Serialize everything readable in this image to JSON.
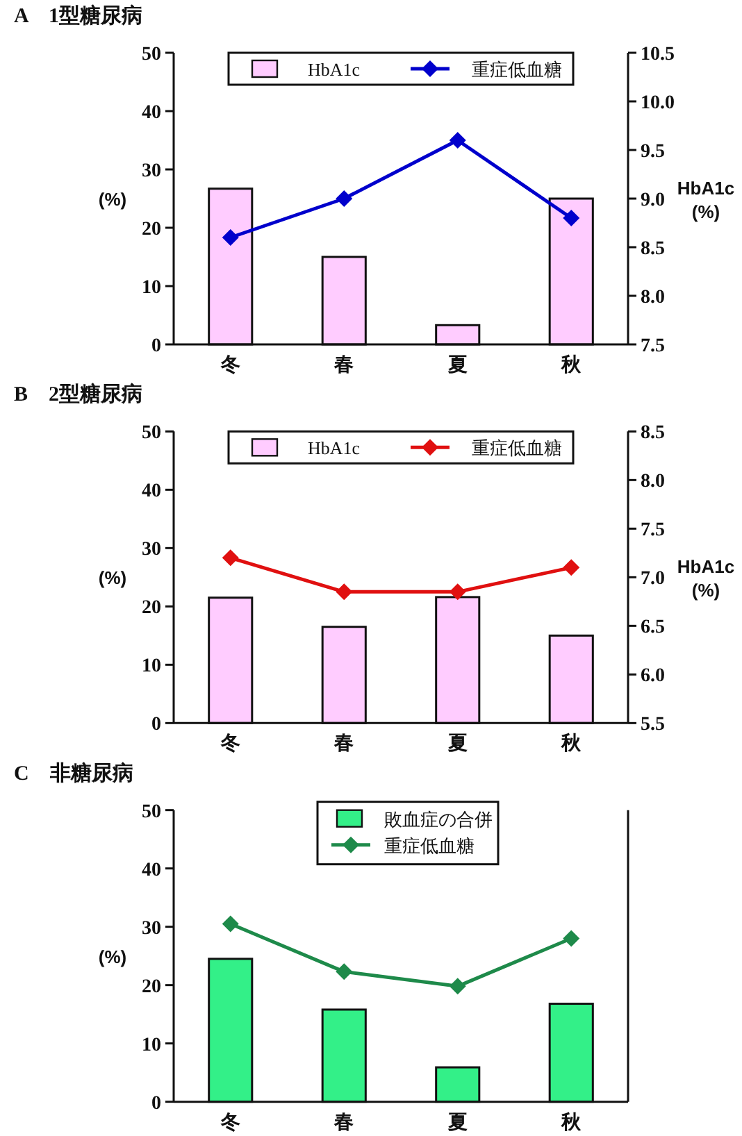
{
  "chart_data": [
    {
      "type": "bar",
      "title": "A　1型糖尿病",
      "ylabel": "(%)",
      "y2label": "HbA1c\n(%)",
      "categories": [
        "冬",
        "春",
        "夏",
        "秋"
      ],
      "ylim": [
        0,
        50
      ],
      "yticks": [
        0,
        10,
        20,
        30,
        40,
        50
      ],
      "y2lim": [
        7.5,
        10.5
      ],
      "y2ticks": [
        7.5,
        {
          "value": 8,
          "label": "8.0"
        },
        8.5,
        {
          "value": 9,
          "label": "9.0"
        },
        9.5,
        {
          "value": 10,
          "label": "10.0"
        },
        10.5
      ],
      "legend": "top",
      "marker": "diamond",
      "series": [
        {
          "name": "HbA1c",
          "color": "#ffccff",
          "values": [
            26.7,
            15,
            3.3,
            25
          ]
        },
        {
          "name": "重症低血糖",
          "type": "line",
          "axis": "y2",
          "color": "#0000cc",
          "values": [
            8.6,
            9.0,
            9.6,
            8.8
          ]
        }
      ]
    },
    {
      "type": "bar",
      "title": "B　2型糖尿病",
      "ylabel": "(%)",
      "y2label": "HbA1c\n(%)",
      "categories": [
        "冬",
        "春",
        "夏",
        "秋"
      ],
      "ylim": [
        0,
        50
      ],
      "yticks": [
        0,
        10,
        20,
        30,
        40,
        50
      ],
      "y2lim": [
        5.5,
        8.5
      ],
      "y2ticks": [
        5.5,
        {
          "value": 6,
          "label": "6.0"
        },
        6.5,
        {
          "value": 7,
          "label": "7.0"
        },
        7.5,
        {
          "value": 8,
          "label": "8.0"
        },
        8.5
      ],
      "legend": "top",
      "marker": "diamond",
      "series": [
        {
          "name": "HbA1c",
          "color": "#ffccff",
          "values": [
            21.5,
            16.5,
            21.6,
            15
          ]
        },
        {
          "name": "重症低血糖",
          "type": "line",
          "axis": "y2",
          "color": "#e01010",
          "values": [
            7.2,
            6.85,
            6.85,
            7.1
          ]
        }
      ]
    },
    {
      "type": "bar",
      "title": "C　非糖尿病",
      "ylabel": "(%)",
      "categories": [
        "冬",
        "春",
        "夏",
        "秋"
      ],
      "ylim": [
        0,
        50
      ],
      "yticks": [
        0,
        10,
        20,
        30,
        40,
        50
      ],
      "legend": "top",
      "marker": "diamond",
      "series": [
        {
          "name": "敗血症の合併",
          "color": "#33f088",
          "values": [
            24.5,
            15.8,
            5.9,
            16.8
          ]
        },
        {
          "name": "重症低血糖",
          "type": "line",
          "color": "#1e8a4a",
          "values": [
            30.5,
            22.3,
            19.8,
            28
          ]
        }
      ]
    }
  ]
}
